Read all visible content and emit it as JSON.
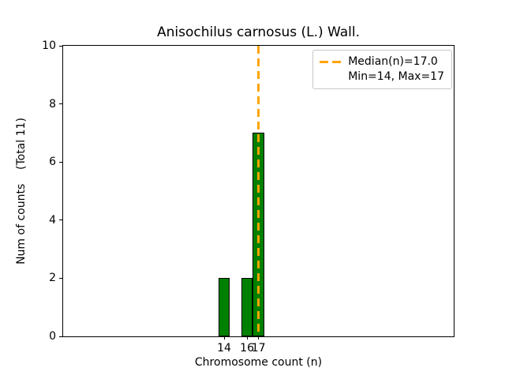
{
  "chart_data": {
    "type": "bar",
    "title": "Anisochilus carnosus (L.) Wall.",
    "xlabel": "Chromosome count (n)",
    "ylabel": "Num of counts    (Total 11)",
    "categories": [
      14,
      16,
      17
    ],
    "values": [
      2,
      2,
      7
    ],
    "total_counts": 11,
    "ylim": [
      0,
      10
    ],
    "yticks": [
      0,
      2,
      4,
      6,
      8,
      10
    ],
    "median": 17.0,
    "min": 14,
    "max": 17,
    "grid": false,
    "legend_position": "upper right",
    "legend_labels": [
      "Median(n)=17.0",
      "Min=14, Max=17"
    ],
    "colors": {
      "bar_fill": "#008000",
      "bar_edge": "#000000",
      "median_line": "#FFA500"
    }
  }
}
